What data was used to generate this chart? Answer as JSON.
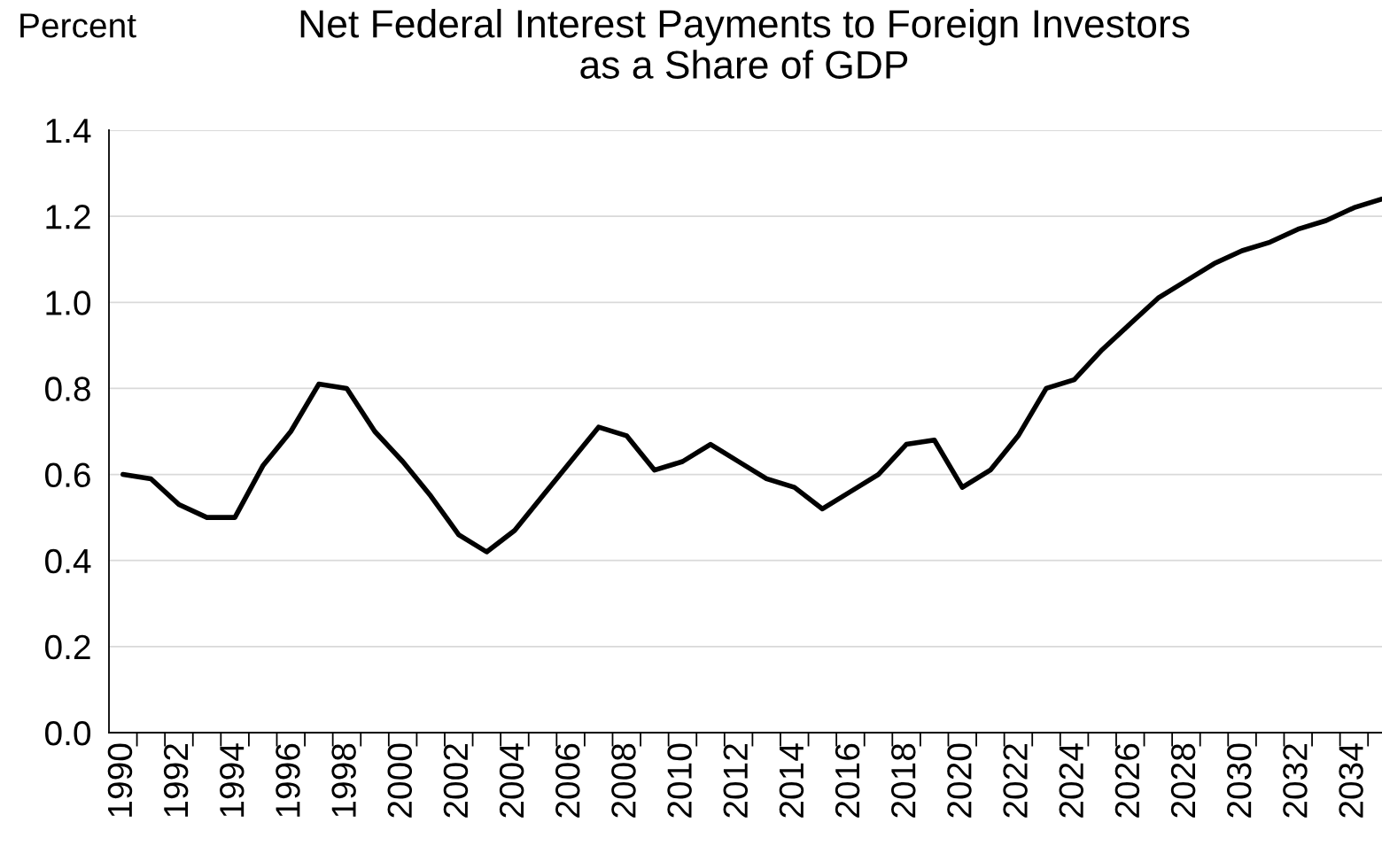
{
  "chart_data": {
    "type": "line",
    "title": "Net Federal Interest Payments to Foreign Investors\nas a Share of GDP",
    "ylabel": "Percent",
    "categories": [
      "1990",
      null,
      "1992",
      null,
      "1994",
      null,
      "1996",
      null,
      "1998",
      null,
      "2000",
      null,
      "2002",
      null,
      "2004",
      null,
      "2006",
      null,
      "2008",
      null,
      "2010",
      null,
      "2012",
      null,
      "2014",
      null,
      "2016",
      null,
      "2018",
      null,
      "2020",
      null,
      "2022",
      null,
      "2024",
      null,
      "2026",
      null,
      "2028",
      null,
      "2030",
      null,
      "2032",
      null,
      "2034",
      null
    ],
    "series": [
      {
        "color": "#000000",
        "values": [
          0.6,
          0.59,
          0.53,
          0.5,
          0.5,
          0.62,
          0.7,
          0.81,
          0.8,
          0.7,
          0.63,
          0.55,
          0.46,
          0.42,
          0.47,
          0.55,
          0.63,
          0.71,
          0.69,
          0.61,
          0.63,
          0.67,
          0.63,
          0.59,
          0.57,
          0.52,
          0.56,
          0.6,
          0.67,
          0.68,
          0.57,
          0.61,
          0.69,
          0.8,
          0.82,
          0.89,
          0.95,
          1.01,
          1.05,
          1.09,
          1.12,
          1.14,
          1.17,
          1.19,
          1.22,
          1.24
        ]
      }
    ],
    "ylim": [
      0,
      1.4
    ],
    "yticks": [
      {
        "value": 0,
        "label": "0.0"
      },
      0.2,
      0.4,
      0.6,
      0.8,
      {
        "value": 1,
        "label": "1.0"
      },
      1.2,
      1.4
    ],
    "grid": "y",
    "line_style": "solid",
    "marker": "none"
  }
}
